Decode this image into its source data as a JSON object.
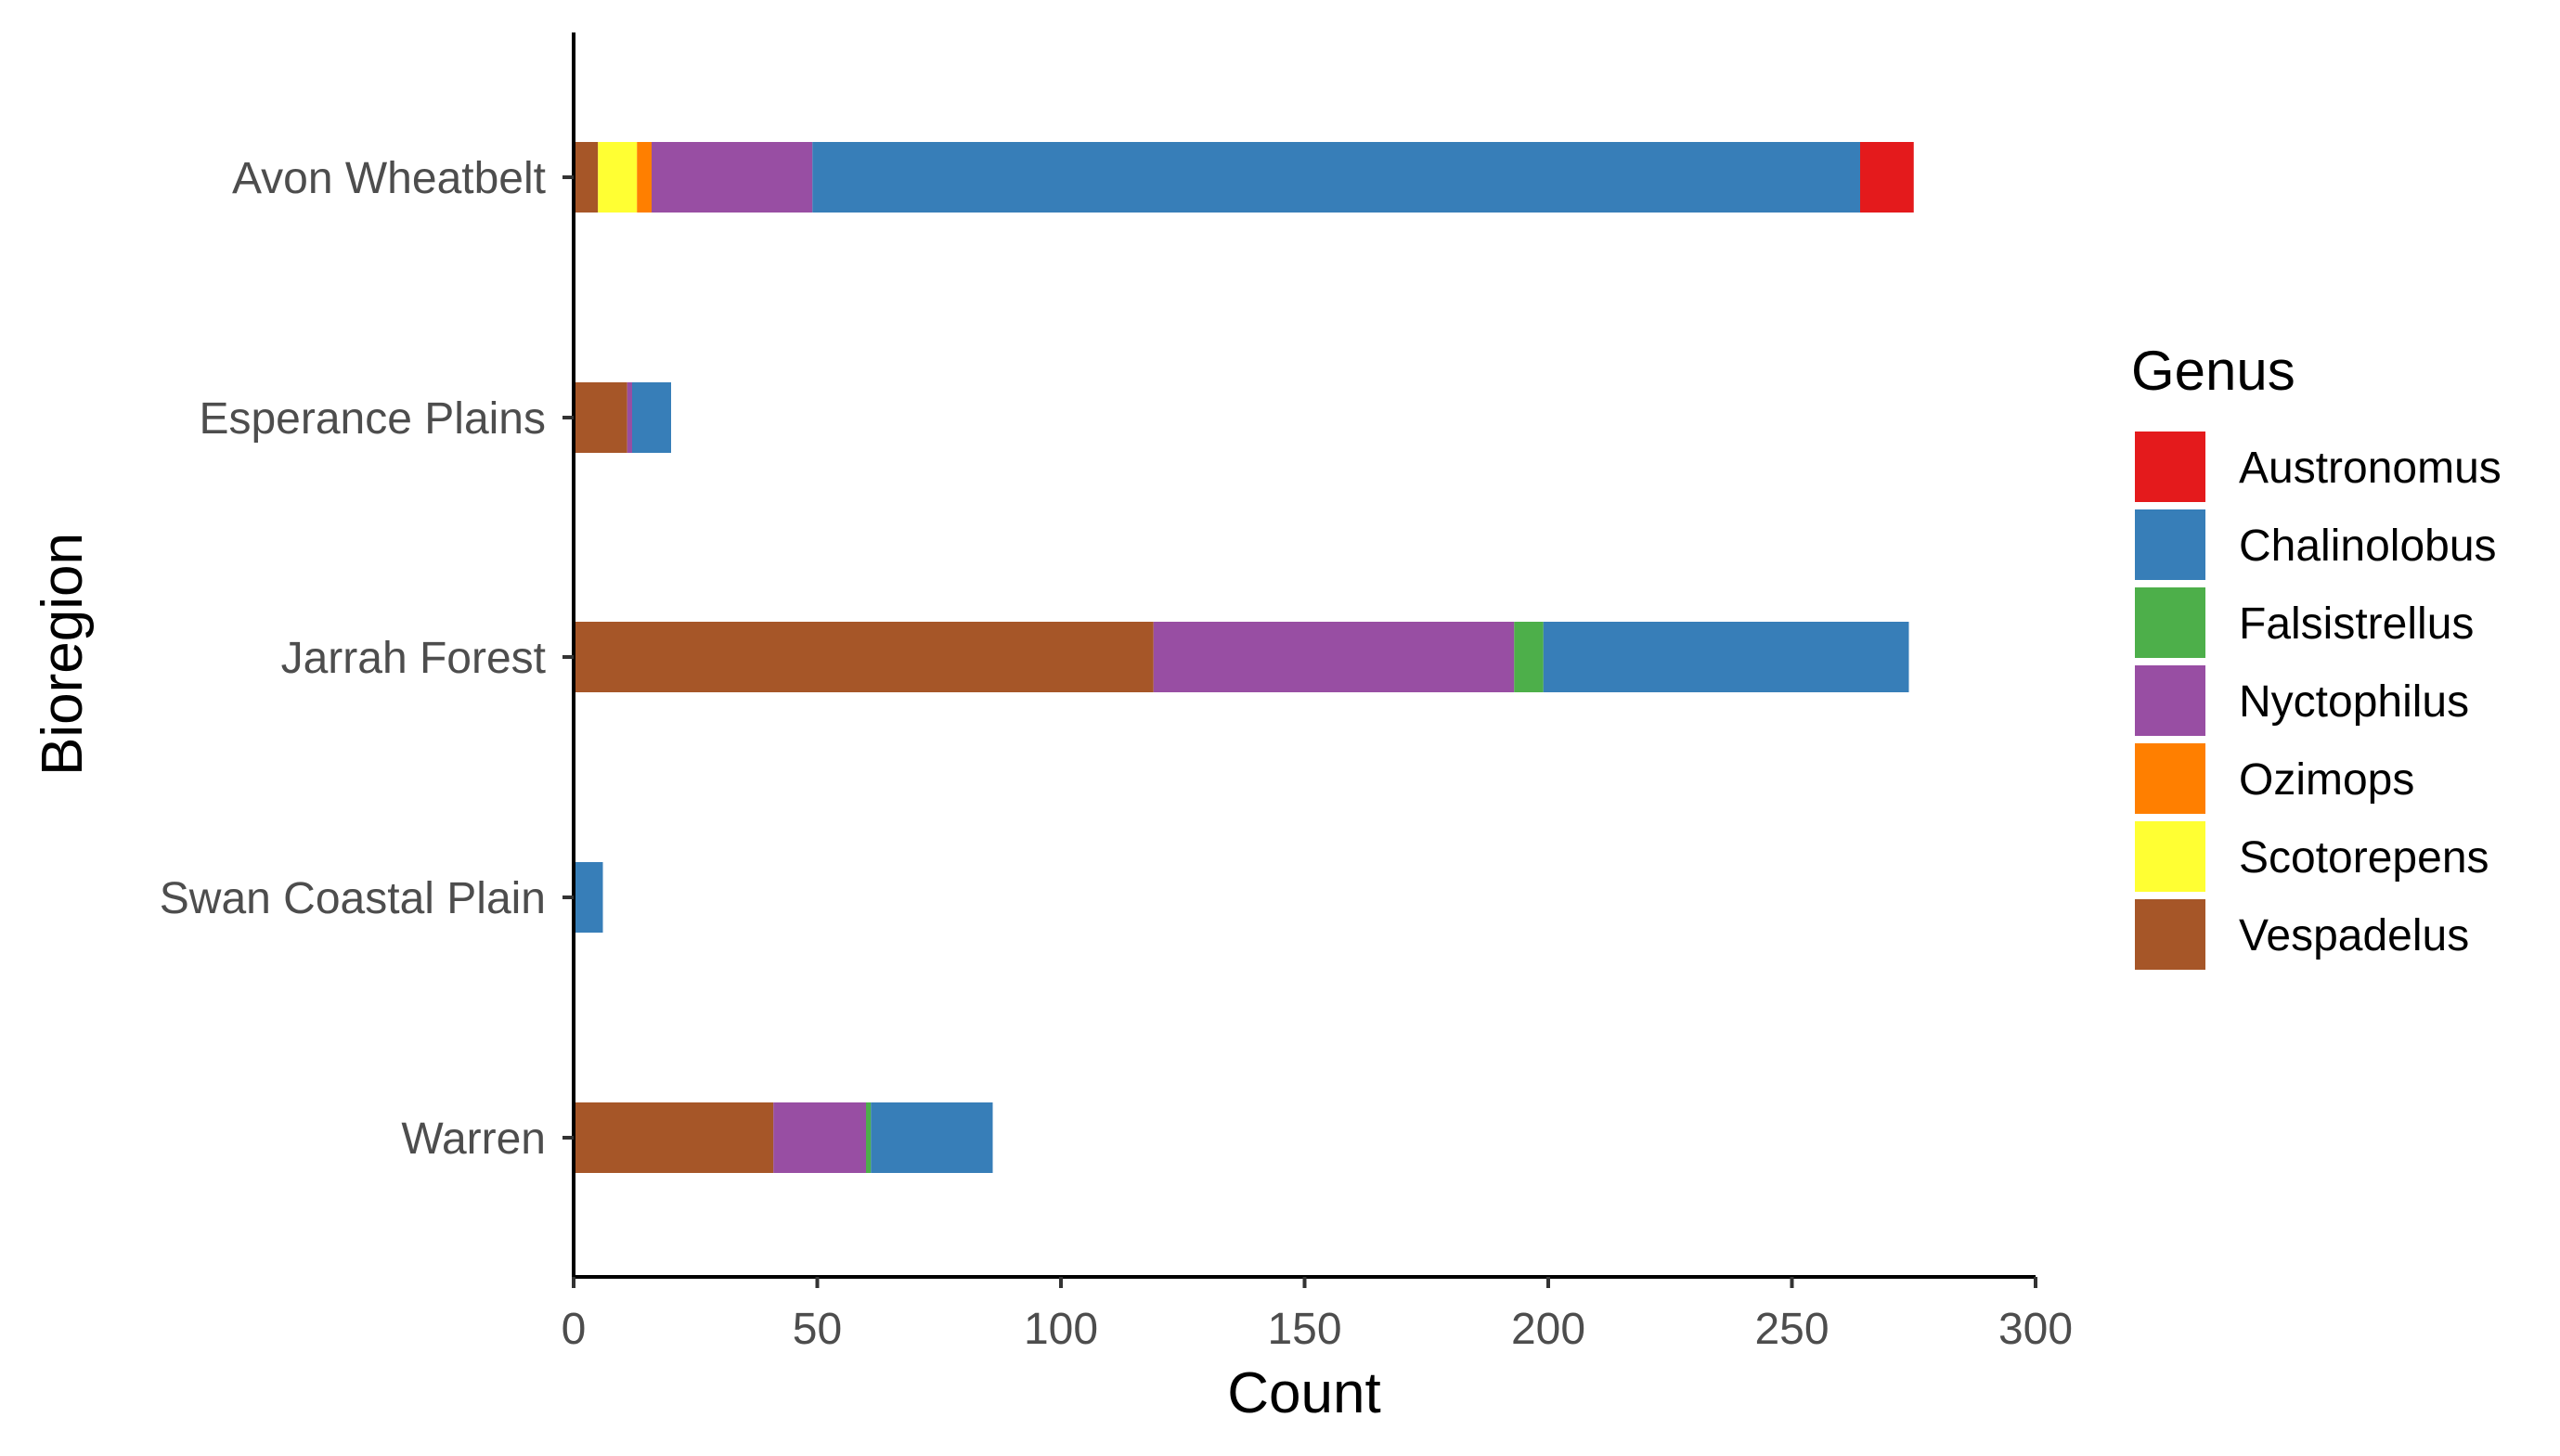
{
  "chart_data": {
    "type": "bar",
    "orientation": "horizontal",
    "stacked": true,
    "xlabel": "Count",
    "ylabel": "Bioregion",
    "xlim": [
      0,
      300
    ],
    "x_ticks": [
      0,
      50,
      100,
      150,
      200,
      250,
      300
    ],
    "categories": [
      "Avon Wheatbelt",
      "Esperance Plains",
      "Jarrah Forest",
      "Swan Coastal Plain",
      "Warren"
    ],
    "stack_order": [
      "Vespadelus",
      "Scotorepens",
      "Ozimops",
      "Nyctophilus",
      "Falsistrellus",
      "Chalinolobus",
      "Austronomus"
    ],
    "series": [
      {
        "name": "Austronomus",
        "color": "#e41a1c",
        "values": [
          11,
          0,
          0,
          0,
          0
        ]
      },
      {
        "name": "Chalinolobus",
        "color": "#377eb8",
        "values": [
          215,
          8,
          75,
          6,
          25
        ]
      },
      {
        "name": "Falsistrellus",
        "color": "#4daf4a",
        "values": [
          0,
          0,
          6,
          0,
          1
        ]
      },
      {
        "name": "Nyctophilus",
        "color": "#984ea3",
        "values": [
          33,
          1,
          74,
          0,
          19
        ]
      },
      {
        "name": "Ozimops",
        "color": "#ff7f00",
        "values": [
          3,
          0,
          0,
          0,
          0
        ]
      },
      {
        "name": "Scotorepens",
        "color": "#ffff33",
        "values": [
          8,
          0,
          0,
          0,
          0
        ]
      },
      {
        "name": "Vespadelus",
        "color": "#a65628",
        "values": [
          5,
          11,
          119,
          0,
          41
        ]
      }
    ],
    "legend": {
      "title": "Genus",
      "position": "right"
    },
    "grid": false
  }
}
